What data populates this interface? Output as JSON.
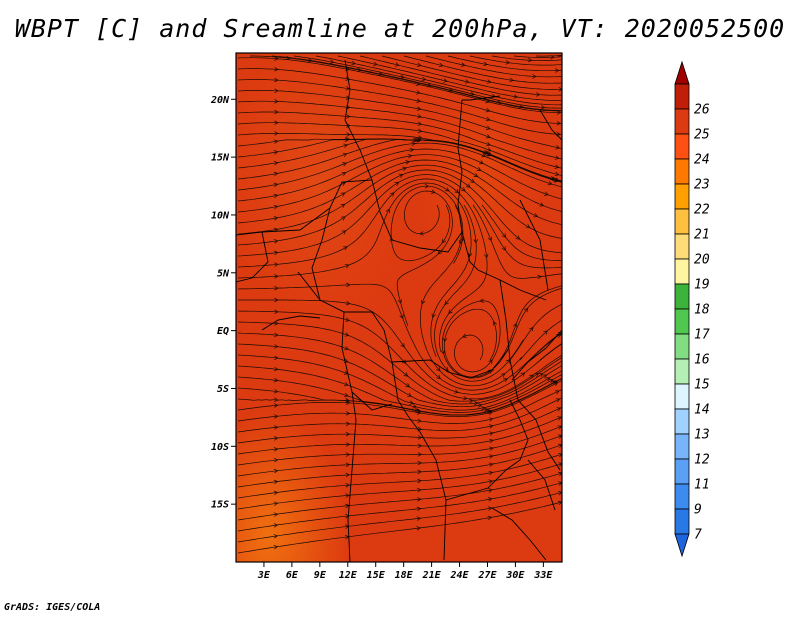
{
  "title": "WBPT [C] and Sreamline at 200hPa, VT: 2020052500",
  "credit": "GrADS: IGES/COLA",
  "map": {
    "field": "WBPT [C]",
    "level": "200hPa",
    "valid_time": "2020052500",
    "lon_range": [
      0,
      35
    ],
    "lat_range": [
      -20,
      24
    ],
    "lat_ticks": [
      {
        "label": "20N",
        "value": 20
      },
      {
        "label": "15N",
        "value": 15
      },
      {
        "label": "10N",
        "value": 10
      },
      {
        "label": "5N",
        "value": 5
      },
      {
        "label": "EQ",
        "value": 0
      },
      {
        "label": "5S",
        "value": -5
      },
      {
        "label": "10S",
        "value": -10
      },
      {
        "label": "15S",
        "value": -15
      }
    ],
    "lon_ticks": [
      {
        "label": "3E",
        "value": 3
      },
      {
        "label": "6E",
        "value": 6
      },
      {
        "label": "9E",
        "value": 9
      },
      {
        "label": "12E",
        "value": 12
      },
      {
        "label": "15E",
        "value": 15
      },
      {
        "label": "18E",
        "value": 18
      },
      {
        "label": "21E",
        "value": 21
      },
      {
        "label": "24E",
        "value": 24
      },
      {
        "label": "27E",
        "value": 27
      },
      {
        "label": "30E",
        "value": 30
      },
      {
        "label": "33E",
        "value": 33
      }
    ],
    "dominant_color": "#dc3a10"
  },
  "colorbar": {
    "levels": [
      "7",
      "9",
      "11",
      "12",
      "13",
      "14",
      "15",
      "16",
      "17",
      "18",
      "19",
      "20",
      "21",
      "22",
      "23",
      "24",
      "25",
      "26"
    ],
    "colors": [
      "#1e64dc",
      "#2878e6",
      "#3c8cf0",
      "#5aa0f5",
      "#78b4fa",
      "#a0d2ff",
      "#dcf5ff",
      "#b4f0b4",
      "#82dc82",
      "#50c850",
      "#3cb43c",
      "#fff5a0",
      "#ffdc78",
      "#ffc040",
      "#ffa000",
      "#ff7800",
      "#ff5014",
      "#dc3a10",
      "#c01e08",
      "#a00000"
    ]
  }
}
